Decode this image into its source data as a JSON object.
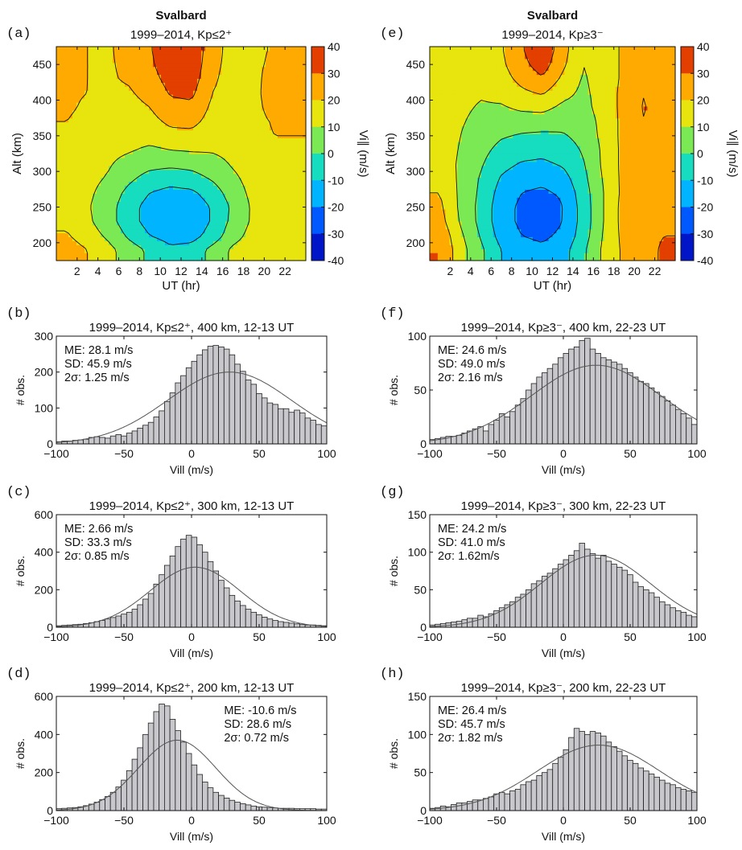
{
  "chart_data": [
    {
      "id": "a",
      "type": "heatmap",
      "panel_label": "(a)",
      "title": "Svalbard",
      "subtitle": "1999–2014, Kp≤2⁺",
      "xlabel": "UT (hr)",
      "ylabel": "Alt (km)",
      "xlim": [
        0,
        24
      ],
      "ylim": [
        175,
        475
      ],
      "xticks": [
        2,
        4,
        6,
        8,
        10,
        12,
        14,
        16,
        18,
        20,
        22
      ],
      "yticks": [
        200,
        250,
        300,
        350,
        400,
        450
      ],
      "x": [
        1,
        3,
        5,
        7,
        9,
        11,
        13,
        15,
        17,
        19,
        21,
        23
      ],
      "y": [
        190,
        210,
        230,
        250,
        270,
        290,
        310,
        330,
        350,
        370,
        390,
        410,
        430,
        450,
        470
      ],
      "z": [
        [
          25,
          20,
          13,
          5,
          -2,
          -8,
          -6,
          3,
          12,
          16,
          18,
          18
        ],
        [
          21,
          15,
          8,
          -2,
          -10,
          -14,
          -14,
          -6,
          6,
          14,
          17,
          17
        ],
        [
          18,
          12,
          4,
          -6,
          -14,
          -18,
          -17,
          -9,
          3,
          12,
          16,
          17
        ],
        [
          17,
          11,
          4,
          -6,
          -14,
          -17,
          -17,
          -9,
          2,
          12,
          16,
          17
        ],
        [
          17,
          12,
          6,
          -3,
          -10,
          -13,
          -12,
          -5,
          5,
          13,
          17,
          18
        ],
        [
          17,
          13,
          9,
          2,
          -4,
          -6,
          -4,
          1,
          8,
          14,
          17,
          18
        ],
        [
          17,
          14,
          11,
          6,
          3,
          2,
          3,
          6,
          11,
          15,
          18,
          18
        ],
        [
          18,
          15,
          13,
          11,
          8,
          10,
          11,
          11,
          13,
          16,
          19,
          19
        ],
        [
          19,
          17,
          15,
          14,
          14,
          17,
          17,
          13,
          14,
          17,
          20,
          20
        ],
        [
          20,
          18,
          16,
          15,
          17,
          22,
          23,
          16,
          15,
          17,
          21,
          21
        ],
        [
          21,
          19,
          17,
          17,
          20,
          27,
          28,
          18,
          15,
          17,
          24,
          22
        ],
        [
          21,
          20,
          18,
          19,
          23,
          31,
          32,
          20,
          15,
          17,
          26,
          22
        ],
        [
          21,
          20,
          19,
          21,
          26,
          34,
          35,
          22,
          15,
          17,
          25,
          22
        ],
        [
          21,
          20,
          19,
          22,
          28,
          37,
          37,
          23,
          16,
          18,
          22,
          22
        ],
        [
          21,
          20,
          19,
          23,
          29,
          38,
          38,
          24,
          16,
          18,
          21,
          21
        ]
      ],
      "colorbar": {
        "label": "Vi∥ (m/s)",
        "range": [
          -40,
          40
        ],
        "ticks": [
          40,
          30,
          20,
          10,
          0,
          -10,
          -20,
          -30,
          -40
        ]
      }
    },
    {
      "id": "e",
      "type": "heatmap",
      "panel_label": "(e)",
      "title": "Svalbard",
      "subtitle": "1999–2014, Kp≥3⁻",
      "xlabel": "UT (hr)",
      "ylabel": "Alt (km)",
      "xlim": [
        0,
        24
      ],
      "ylim": [
        175,
        475
      ],
      "xticks": [
        2,
        4,
        6,
        8,
        10,
        12,
        14,
        16,
        18,
        20,
        22
      ],
      "yticks": [
        200,
        250,
        300,
        350,
        400,
        450
      ],
      "x": [
        1,
        3,
        5,
        7,
        9,
        11,
        13,
        15,
        17,
        19,
        21,
        23
      ],
      "y": [
        190,
        210,
        230,
        250,
        270,
        290,
        310,
        330,
        350,
        370,
        390,
        410,
        430,
        450,
        470
      ],
      "z": [
        [
          30,
          14,
          2,
          -10,
          -16,
          -18,
          -14,
          -2,
          12,
          22,
          26,
          32
        ],
        [
          28,
          12,
          -1,
          -14,
          -20,
          -22,
          -18,
          -5,
          11,
          23,
          27,
          30
        ],
        [
          24,
          9,
          -3,
          -16,
          -22,
          -25,
          -20,
          -6,
          10,
          24,
          28,
          27
        ],
        [
          22,
          8,
          -3,
          -16,
          -22,
          -30,
          -20,
          -6,
          10,
          24,
          28,
          25
        ],
        [
          20,
          8,
          -2,
          -14,
          -20,
          -22,
          -18,
          -5,
          10,
          23,
          28,
          24
        ],
        [
          18,
          8,
          -1,
          -11,
          -16,
          -17,
          -14,
          -3,
          11,
          23,
          28,
          24
        ],
        [
          17,
          8,
          1,
          -7,
          -11,
          -12,
          -9,
          -1,
          12,
          23,
          28,
          23
        ],
        [
          17,
          9,
          3,
          -3,
          -6,
          -7,
          -5,
          1,
          12,
          23,
          28,
          23
        ],
        [
          17,
          10,
          5,
          1,
          -1,
          -2,
          -1,
          3,
          13,
          23,
          29,
          22
        ],
        [
          17,
          11,
          7,
          5,
          5,
          5,
          3,
          5,
          13,
          23,
          30,
          22
        ],
        [
          17,
          12,
          9,
          9,
          12,
          13,
          8,
          7,
          14,
          23,
          31,
          22
        ],
        [
          17,
          13,
          11,
          13,
          18,
          21,
          13,
          8,
          14,
          23,
          30,
          21
        ],
        [
          17,
          14,
          12,
          16,
          23,
          29,
          18,
          9,
          14,
          22,
          29,
          21
        ],
        [
          17,
          15,
          13,
          18,
          27,
          35,
          22,
          10,
          14,
          22,
          27,
          20
        ],
        [
          17,
          15,
          14,
          19,
          29,
          38,
          24,
          10,
          14,
          22,
          26,
          20
        ]
      ],
      "colorbar": {
        "label": "Vi∥ (m/s)",
        "range": [
          -40,
          40
        ],
        "ticks": [
          40,
          30,
          20,
          10,
          0,
          -10,
          -20,
          -30,
          -40
        ]
      }
    },
    {
      "id": "b",
      "type": "bar",
      "panel_label": "(b)",
      "title": "1999–2014, Kp≤2⁺, 400 km, 12-13 UT",
      "xlabel": "Vill (m/s)",
      "ylabel": "# obs.",
      "xlim": [
        -100,
        100
      ],
      "ylim": [
        0,
        300
      ],
      "xticks": [
        -100,
        -50,
        0,
        50,
        100
      ],
      "yticks": [
        0,
        100,
        200,
        300
      ],
      "stats": {
        "me": "ME: 28.1 m/s",
        "sd": "SD: 45.9 m/s",
        "sig": "2σ: 1.25 m/s",
        "pos": "top-left"
      },
      "fit": {
        "mean": 28.1,
        "sd": 45.9,
        "peak": 200
      },
      "bin_start": -100,
      "bin_width": 4,
      "values": [
        6,
        8,
        8,
        10,
        11,
        13,
        18,
        20,
        18,
        16,
        22,
        26,
        22,
        30,
        36,
        44,
        52,
        60,
        75,
        92,
        118,
        142,
        170,
        190,
        212,
        230,
        248,
        262,
        272,
        274,
        270,
        264,
        248,
        222,
        202,
        178,
        166,
        140,
        128,
        114,
        110,
        98,
        98,
        88,
        94,
        86,
        72,
        66,
        54,
        50
      ]
    },
    {
      "id": "f",
      "type": "bar",
      "panel_label": "(f)",
      "title": "1999–2014, Kp≥3⁻, 400 km, 22-23 UT",
      "xlabel": "Vill (m/s)",
      "ylabel": "# obs.",
      "xlim": [
        -100,
        100
      ],
      "ylim": [
        0,
        100
      ],
      "xticks": [
        -100,
        -50,
        0,
        50,
        100
      ],
      "yticks": [
        0,
        50,
        100
      ],
      "stats": {
        "me": "ME: 24.6 m/s",
        "sd": "SD: 49.0 m/s",
        "sig": "2σ: 2.16 m/s",
        "pos": "top-left"
      },
      "fit": {
        "mean": 24.6,
        "sd": 49.0,
        "peak": 73
      },
      "bin_start": -100,
      "bin_width": 4,
      "values": [
        4,
        5,
        6,
        7,
        7,
        8,
        10,
        12,
        14,
        16,
        12,
        18,
        22,
        28,
        25,
        30,
        36,
        42,
        50,
        56,
        62,
        66,
        70,
        74,
        80,
        84,
        88,
        90,
        96,
        98,
        88,
        84,
        80,
        78,
        76,
        74,
        70,
        66,
        62,
        58,
        56,
        52,
        48,
        44,
        40,
        36,
        32,
        28,
        24,
        18
      ]
    },
    {
      "id": "c",
      "type": "bar",
      "panel_label": "(c)",
      "title": "1999–2014, Kp≤2⁺, 300 km, 12-13 UT",
      "xlabel": "Vill (m/s)",
      "ylabel": "# obs.",
      "xlim": [
        -100,
        100
      ],
      "ylim": [
        0,
        600
      ],
      "xticks": [
        -100,
        -50,
        0,
        50,
        100
      ],
      "yticks": [
        0,
        200,
        400,
        600
      ],
      "stats": {
        "me": "ME: 2.66 m/s",
        "sd": "SD: 33.3 m/s",
        "sig": "2σ: 0.85 m/s",
        "pos": "top-left"
      },
      "fit": {
        "mean": 2.66,
        "sd": 33.3,
        "peak": 320
      },
      "bin_start": -100,
      "bin_width": 4,
      "values": [
        8,
        10,
        12,
        14,
        16,
        20,
        24,
        30,
        36,
        44,
        52,
        60,
        70,
        80,
        96,
        120,
        150,
        180,
        230,
        280,
        330,
        380,
        430,
        470,
        490,
        480,
        440,
        400,
        350,
        300,
        250,
        210,
        170,
        140,
        116,
        96,
        80,
        66,
        54,
        44,
        36,
        30,
        26,
        22,
        18,
        14,
        12,
        12,
        10,
        8
      ]
    },
    {
      "id": "g",
      "type": "bar",
      "panel_label": "(g)",
      "title": "1999–2014, Kp≥3⁻, 300 km, 22-23 UT",
      "xlabel": "Vill (m/s)",
      "ylabel": "# obs.",
      "xlim": [
        -100,
        100
      ],
      "ylim": [
        0,
        150
      ],
      "xticks": [
        -100,
        -50,
        0,
        50,
        100
      ],
      "yticks": [
        0,
        50,
        100,
        150
      ],
      "stats": {
        "me": "ME: 24.2 m/s",
        "sd": "SD: 41.0 m/s",
        "sig": "2σ: 1.62m/s",
        "pos": "top-left"
      },
      "fit": {
        "mean": 24.2,
        "sd": 41.0,
        "peak": 96
      },
      "bin_start": -100,
      "bin_width": 4,
      "values": [
        3,
        4,
        5,
        6,
        7,
        8,
        10,
        12,
        12,
        16,
        14,
        18,
        22,
        26,
        30,
        34,
        40,
        44,
        50,
        58,
        62,
        68,
        72,
        78,
        84,
        90,
        96,
        102,
        112,
        104,
        98,
        92,
        96,
        88,
        84,
        80,
        76,
        70,
        60,
        54,
        50,
        46,
        40,
        34,
        30,
        26,
        22,
        20,
        16,
        14
      ]
    },
    {
      "id": "d",
      "type": "bar",
      "panel_label": "(d)",
      "title": "1999–2014, Kp≤2⁺, 200 km, 12-13 UT",
      "xlabel": "Vill (m/s)",
      "ylabel": "# obs.",
      "xlim": [
        -100,
        100
      ],
      "ylim": [
        0,
        600
      ],
      "xticks": [
        -100,
        -50,
        0,
        50,
        100
      ],
      "yticks": [
        0,
        200,
        400,
        600
      ],
      "stats": {
        "me": "ME: -10.6 m/s",
        "sd": "SD: 28.6 m/s",
        "sig": "2σ: 0.72 m/s",
        "pos": "top-right"
      },
      "fit": {
        "mean": -10.6,
        "sd": 28.6,
        "peak": 370
      },
      "bin_start": -100,
      "bin_width": 4,
      "values": [
        10,
        12,
        14,
        16,
        20,
        26,
        34,
        44,
        58,
        74,
        96,
        124,
        160,
        210,
        270,
        330,
        400,
        460,
        520,
        560,
        550,
        480,
        420,
        360,
        300,
        240,
        190,
        150,
        120,
        96,
        80,
        66,
        54,
        44,
        36,
        30,
        24,
        20,
        18,
        16,
        14,
        12,
        12,
        12,
        10,
        10,
        10,
        10,
        8,
        8
      ]
    },
    {
      "id": "h",
      "type": "bar",
      "panel_label": "(h)",
      "title": "1999–2014, Kp≥3⁻, 200 km, 22-23 UT",
      "xlabel": "Vill (m/s)",
      "ylabel": "# obs.",
      "xlim": [
        -100,
        100
      ],
      "ylim": [
        0,
        150
      ],
      "xticks": [
        -100,
        -50,
        0,
        50,
        100
      ],
      "yticks": [
        0,
        50,
        100,
        150
      ],
      "stats": {
        "me": "ME: 26.4 m/s",
        "sd": "SD: 45.7 m/s",
        "sig": "2σ: 1.82 m/s",
        "pos": "top-left"
      },
      "fit": {
        "mean": 26.4,
        "sd": 45.7,
        "peak": 86
      },
      "bin_start": -100,
      "bin_width": 4,
      "values": [
        3,
        4,
        6,
        5,
        8,
        10,
        10,
        12,
        14,
        14,
        16,
        18,
        22,
        24,
        22,
        26,
        28,
        34,
        38,
        40,
        46,
        50,
        54,
        62,
        70,
        80,
        96,
        108,
        104,
        100,
        104,
        102,
        98,
        90,
        84,
        78,
        72,
        66,
        62,
        56,
        52,
        48,
        44,
        40,
        36,
        34,
        30,
        28,
        26,
        24
      ]
    }
  ]
}
